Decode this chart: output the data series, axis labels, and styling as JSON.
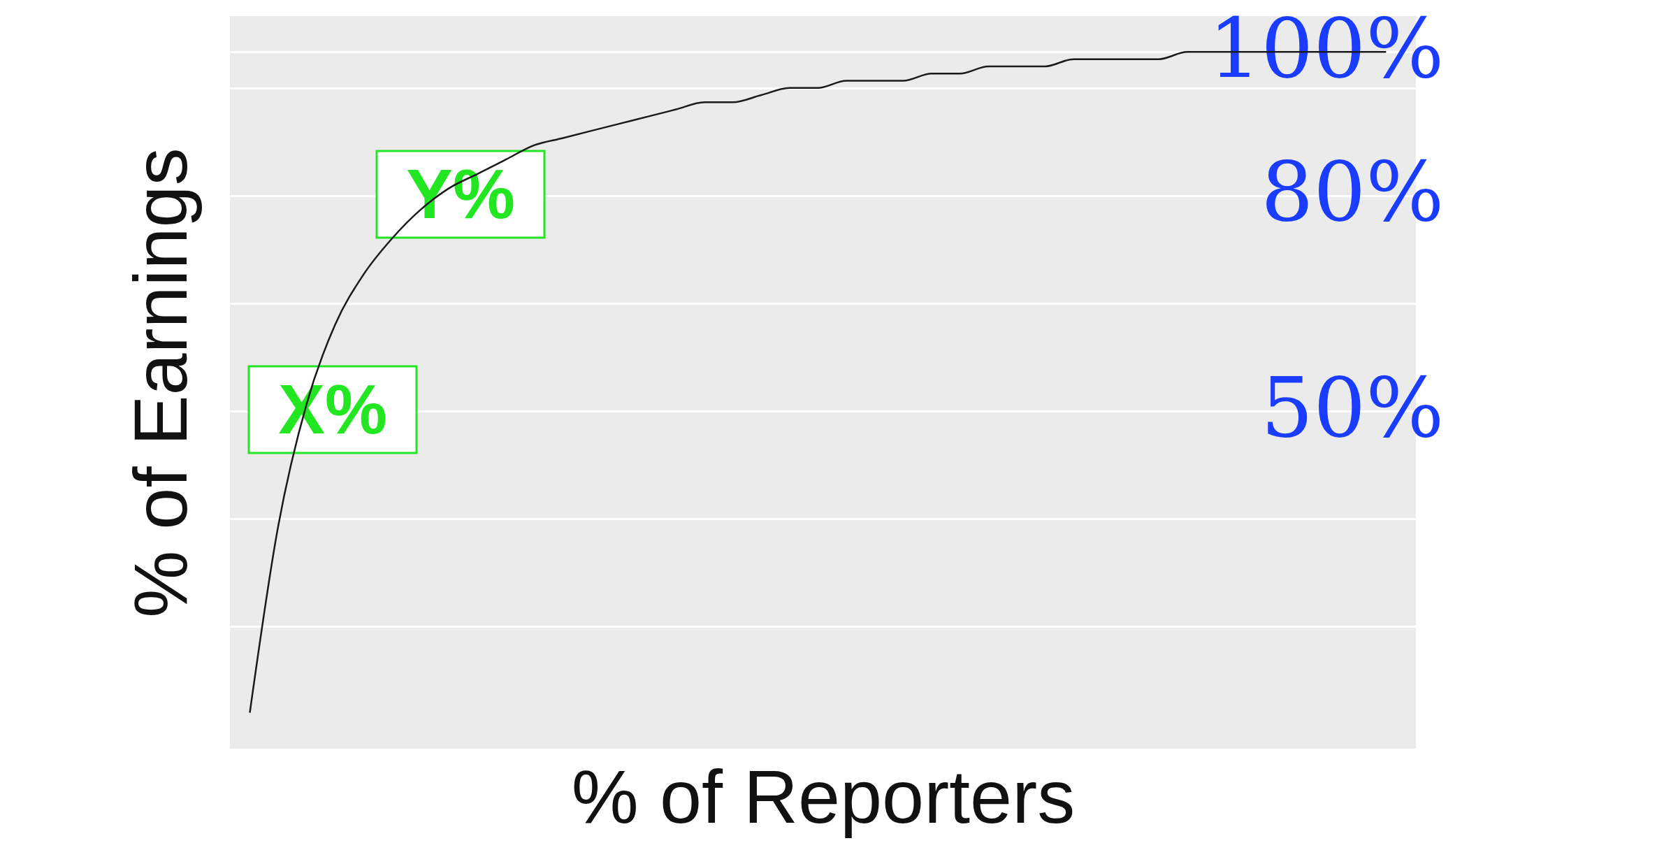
{
  "chart_data": {
    "type": "line",
    "xlabel": "% of Reporters",
    "ylabel": "% of Earnings",
    "categories": [
      null,
      null,
      null,
      null,
      null,
      null,
      null,
      null,
      null,
      null,
      null,
      null,
      null,
      null,
      null,
      null,
      null,
      null,
      null,
      null,
      null,
      null,
      null,
      null,
      null,
      null,
      null,
      null,
      null,
      null,
      null,
      null,
      null,
      null,
      null,
      null,
      null,
      null,
      null,
      null,
      null
    ],
    "series": [
      {
        "color": "#1a1a1a",
        "values": [
          8,
          34,
          51,
          62,
          69,
          74,
          78,
          81,
          83,
          85,
          87,
          88,
          89,
          90,
          91,
          92,
          93,
          93,
          94,
          95,
          95,
          96,
          96,
          96,
          97,
          97,
          98,
          98,
          98,
          99,
          99,
          99,
          99,
          100,
          100,
          100,
          100,
          100,
          100,
          100,
          100
        ]
      }
    ],
    "ylim": [
      3,
      105
    ],
    "yticks": [
      {
        "value": 20,
        "label": null
      },
      {
        "value": 35,
        "label": null
      },
      {
        "value": 50,
        "label": "50%"
      },
      {
        "value": 65,
        "label": null
      },
      {
        "value": 80,
        "label": "80%"
      },
      {
        "value": 95,
        "label": null
      },
      {
        "value": 100,
        "label": "100%"
      }
    ],
    "grid": "y",
    "tick_labels": "y",
    "marker": "none",
    "line_style": "solid",
    "annotations": [
      "X%",
      "Y%"
    ]
  }
}
